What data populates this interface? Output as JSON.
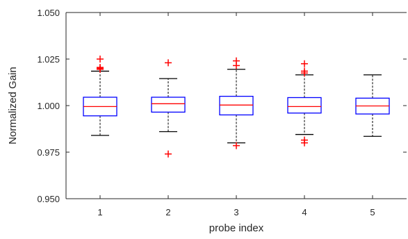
{
  "chart_data": {
    "type": "box",
    "title": "",
    "xlabel": "probe index",
    "ylabel": "Normalized Gain",
    "ylim": [
      0.95,
      1.05
    ],
    "yticks": [
      0.95,
      0.975,
      1.0,
      1.025,
      1.05
    ],
    "ytick_labels": [
      "0.950",
      "0.975",
      "1.000",
      "1.025",
      "1.050"
    ],
    "categories": [
      "1",
      "2",
      "3",
      "4",
      "5"
    ],
    "grid": false,
    "colors": {
      "box": "#0000ff",
      "median": "#ff0000",
      "whisker": "#000000",
      "outlier": "#ff0000",
      "axis": "#262626"
    },
    "boxes": [
      {
        "label": "1",
        "whisker_low": 0.984,
        "q1": 0.9945,
        "median": 0.9995,
        "q3": 1.0045,
        "whisker_high": 1.0185,
        "outliers": [
          1.0195,
          1.02,
          1.0205,
          1.025
        ]
      },
      {
        "label": "2",
        "whisker_low": 0.986,
        "q1": 0.9965,
        "median": 1.001,
        "q3": 1.0045,
        "whisker_high": 1.0145,
        "outliers": [
          0.974,
          1.023
        ]
      },
      {
        "label": "3",
        "whisker_low": 0.98,
        "q1": 0.995,
        "median": 1.0003,
        "q3": 1.005,
        "whisker_high": 1.0195,
        "outliers": [
          0.9785,
          1.0215,
          1.024
        ]
      },
      {
        "label": "4",
        "whisker_low": 0.9845,
        "q1": 0.996,
        "median": 0.9995,
        "q3": 1.0043,
        "whisker_high": 1.0165,
        "outliers": [
          0.98,
          0.9815,
          1.0175,
          1.0185,
          1.0225
        ]
      },
      {
        "label": "5",
        "whisker_low": 0.9835,
        "q1": 0.9955,
        "median": 0.9998,
        "q3": 1.004,
        "whisker_high": 1.0165,
        "outliers": []
      }
    ]
  }
}
